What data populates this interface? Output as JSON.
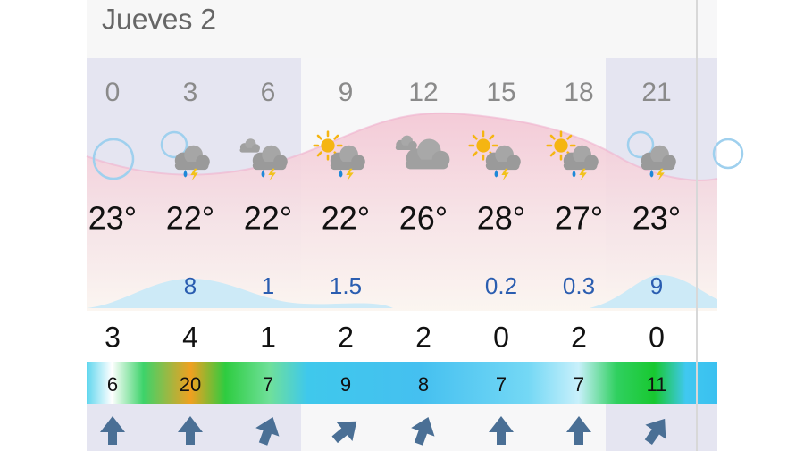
{
  "header": {
    "title": "Jueves 2"
  },
  "columns": [
    {
      "hour": "0",
      "temperature": "23°",
      "value": "3",
      "wind": "6"
    },
    {
      "hour": "3",
      "temperature": "22°",
      "precipitation": "8",
      "value": "4",
      "wind": "20"
    },
    {
      "hour": "6",
      "temperature": "22°",
      "precipitation": "1",
      "value": "1",
      "wind": "7"
    },
    {
      "hour": "9",
      "temperature": "22°",
      "precipitation": "1.5",
      "value": "2",
      "wind": "9"
    },
    {
      "hour": "12",
      "temperature": "26°",
      "value": "2",
      "wind": "8"
    },
    {
      "hour": "15",
      "temperature": "28°",
      "precipitation": "0.2",
      "value": "0",
      "wind": "7"
    },
    {
      "hour": "18",
      "temperature": "27°",
      "precipitation": "0.3",
      "value": "2",
      "wind": "7"
    },
    {
      "hour": "21",
      "temperature": "23°",
      "precipitation": "9",
      "value": "0",
      "wind": "11"
    }
  ]
}
